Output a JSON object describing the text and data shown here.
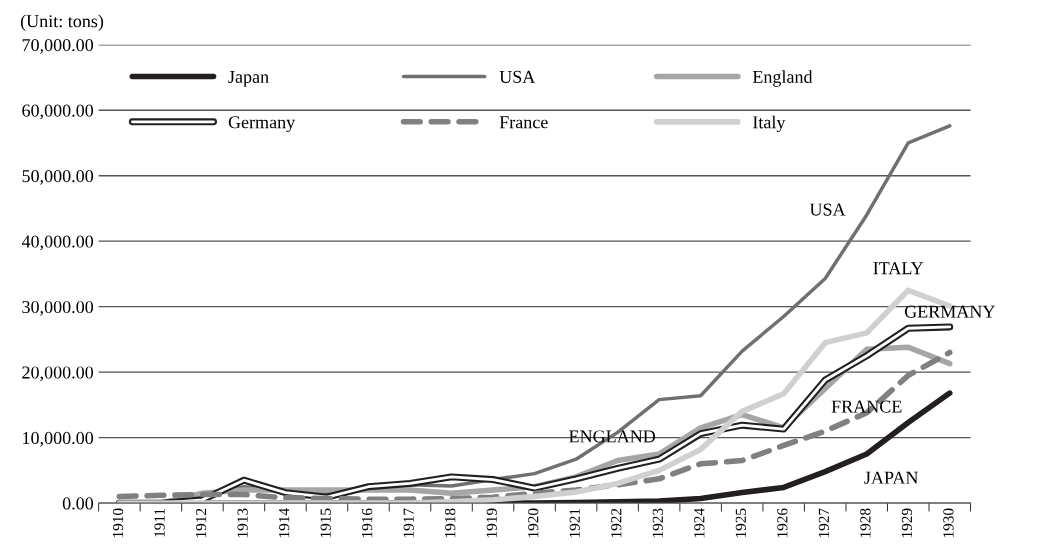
{
  "chart_data": {
    "type": "line",
    "ylabel": "(Unit: tons)",
    "categories": [
      "1910",
      "1911",
      "1912",
      "1913",
      "1914",
      "1915",
      "1916",
      "1917",
      "1918",
      "1919",
      "1920",
      "1921",
      "1922",
      "1923",
      "1924",
      "1925",
      "1926",
      "1927",
      "1928",
      "1929",
      "1930"
    ],
    "series": [
      {
        "name": "Japan",
        "color": "#231f20",
        "values": [
          0,
          0,
          0,
          0,
          0,
          0,
          0,
          0,
          0,
          0,
          0,
          100,
          200,
          300,
          700,
          1600,
          2400,
          4800,
          7500,
          12300,
          16800
        ]
      },
      {
        "name": "USA",
        "color": "#707070",
        "values": [
          0,
          0,
          1200,
          2500,
          1800,
          1500,
          2200,
          2800,
          2600,
          3600,
          4500,
          6700,
          10800,
          15800,
          16400,
          23200,
          28500,
          34300,
          44000,
          55000,
          57600
        ]
      },
      {
        "name": "England",
        "color": "#a6a6a6",
        "values": [
          0,
          0,
          1500,
          2000,
          2000,
          2000,
          2000,
          2000,
          1500,
          2000,
          2500,
          4000,
          6500,
          7500,
          11500,
          13500,
          11500,
          17500,
          23500,
          23800,
          21300
        ]
      },
      {
        "name": "Germany",
        "color": "#231f20",
        "values": [
          0,
          0,
          500,
          3500,
          1600,
          900,
          2500,
          3000,
          4000,
          3600,
          2300,
          3700,
          5300,
          6700,
          10600,
          11900,
          11300,
          18800,
          22500,
          26700,
          26900
        ]
      },
      {
        "name": "France",
        "color": "#808080",
        "line_style": "dashed",
        "values": [
          1000,
          1200,
          1300,
          1300,
          800,
          700,
          600,
          600,
          700,
          900,
          1500,
          2000,
          2800,
          3700,
          6000,
          6500,
          8800,
          11000,
          13800,
          19500,
          23000
        ]
      },
      {
        "name": "Italy",
        "color": "#d0d0d0",
        "values": [
          0,
          0,
          0,
          0,
          0,
          0,
          0,
          0,
          200,
          500,
          1000,
          1700,
          3000,
          5000,
          8200,
          14000,
          16700,
          24500,
          26000,
          32500,
          30100
        ]
      }
    ],
    "ylim": [
      0,
      70000
    ],
    "yticks": [
      {
        "value": 0,
        "label": "0.00"
      },
      {
        "value": 10000,
        "label": "10,000.00"
      },
      {
        "value": 20000,
        "label": "20,000.00"
      },
      {
        "value": 30000,
        "label": "30,000.00"
      },
      {
        "value": 40000,
        "label": "40,000.00"
      },
      {
        "value": 50000,
        "label": "50,000.00"
      },
      {
        "value": 60000,
        "label": "60,000.00"
      },
      {
        "value": 70000,
        "label": "70,000.00"
      }
    ],
    "grid": "y",
    "legend": "top left",
    "annotations": [
      "USA",
      "ITALY",
      {
        "text": "GERMANY",
        "x": "1930",
        "y": 29000
      },
      {
        "text": "FRANCE",
        "x": "1928",
        "y": 14500
      },
      "ENGLAND",
      "JAPAN"
    ]
  }
}
